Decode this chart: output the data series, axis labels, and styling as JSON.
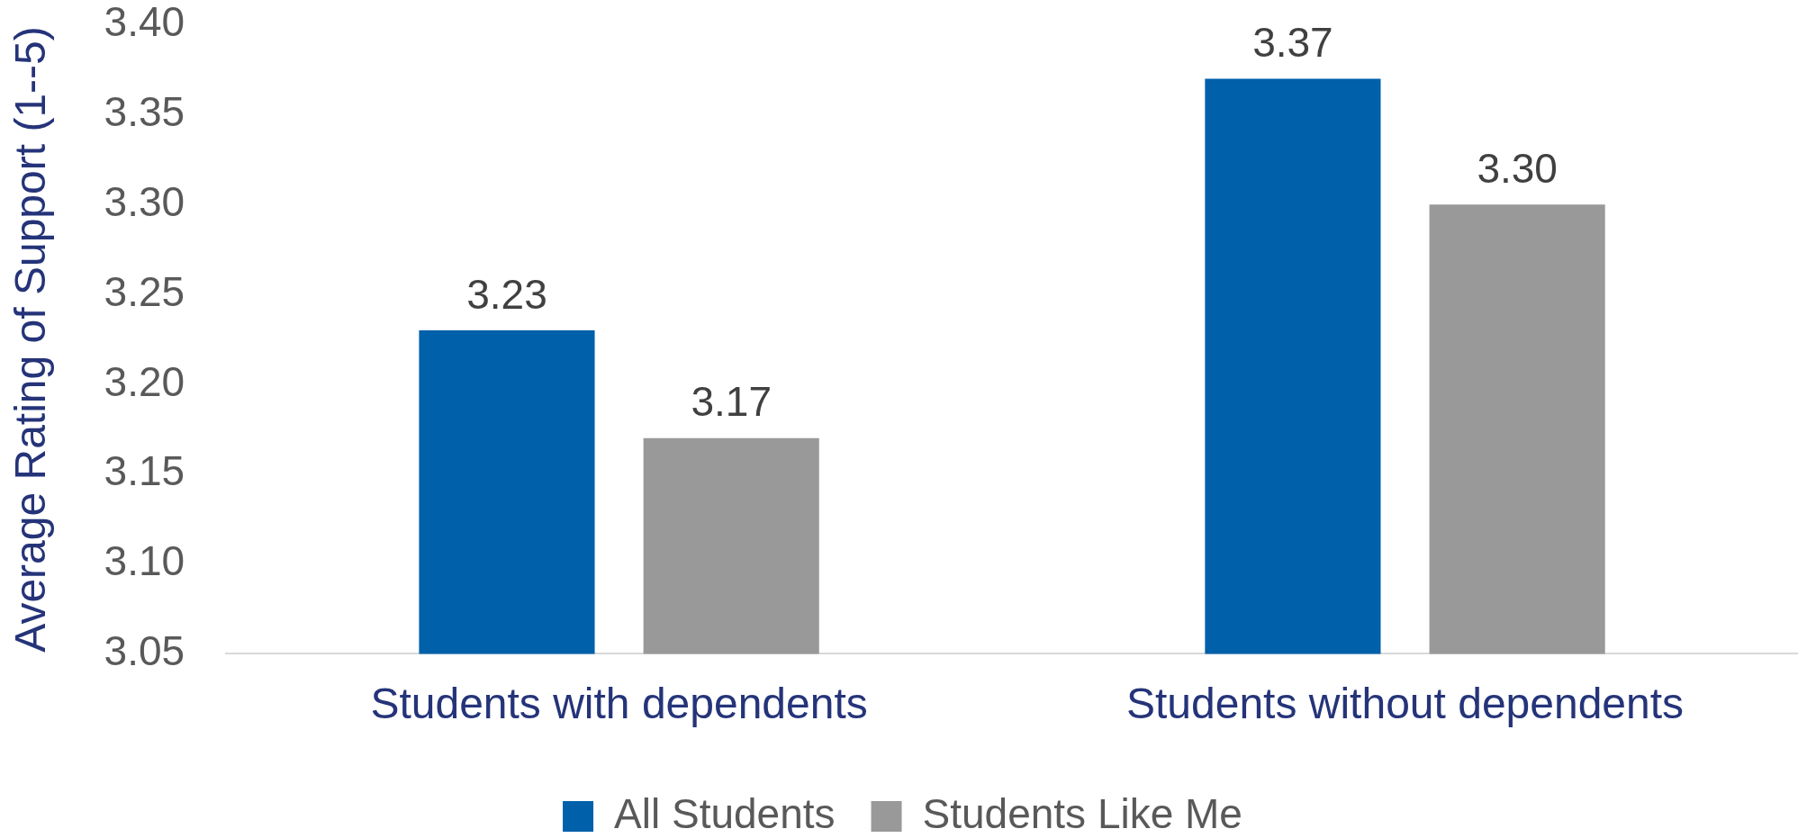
{
  "chart_data": {
    "type": "bar",
    "ylabel": "Average Rating of Support (1--5)",
    "categories": [
      "Students with dependents",
      "Students without dependents"
    ],
    "series": [
      {
        "name": "All Students",
        "color": "#0060aa",
        "values": [
          3.23,
          3.37
        ],
        "value_labels": [
          "3.23",
          "3.37"
        ]
      },
      {
        "name": "Students Like Me",
        "color": "#999999",
        "values": [
          3.17,
          3.3
        ],
        "value_labels": [
          "3.17",
          "3.30"
        ]
      }
    ],
    "ylim": [
      3.05,
      3.4
    ],
    "yticks": [
      {
        "value": 3.05,
        "label": "3.05"
      },
      {
        "value": 3.1,
        "label": "3.10"
      },
      {
        "value": 3.15,
        "label": "3.15"
      },
      {
        "value": 3.2,
        "label": "3.20"
      },
      {
        "value": 3.25,
        "label": "3.25"
      },
      {
        "value": 3.3,
        "label": "3.30"
      },
      {
        "value": 3.35,
        "label": "3.35"
      },
      {
        "value": 3.4,
        "label": "3.40"
      }
    ],
    "legend": "bottom"
  }
}
